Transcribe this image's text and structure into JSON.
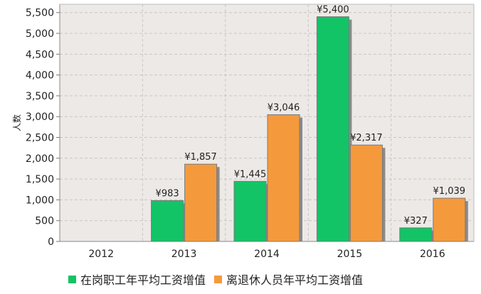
{
  "chart_data": {
    "type": "bar",
    "ylabel": "人数",
    "ylim": [
      0,
      5700
    ],
    "yticks": [
      0,
      500,
      1000,
      1500,
      2000,
      2500,
      3000,
      3500,
      4000,
      4500,
      5000,
      5500
    ],
    "ytick_labels": [
      "0",
      "500",
      "1,000",
      "1,500",
      "2,000",
      "2,500",
      "3,000",
      "3,500",
      "4,000",
      "4,500",
      "5,000",
      "5,500"
    ],
    "categories": [
      "2012",
      "2013",
      "2014",
      "2015",
      "2016"
    ],
    "series": [
      {
        "name": "在岗职工年平均工资增值",
        "color": "#12c466",
        "values": [
          null,
          983,
          1445,
          5400,
          327
        ],
        "labels": [
          "",
          "¥983",
          "¥1,445",
          "¥5,400",
          "¥327"
        ]
      },
      {
        "name": "离退休人员年平均工资增值",
        "color": "#f59a3c",
        "values": [
          null,
          1857,
          3046,
          2317,
          1039
        ],
        "labels": [
          "",
          "¥1,857",
          "¥3,046",
          "¥2,317",
          "¥1,039"
        ]
      }
    ],
    "grid": true,
    "legend_position": "bottom-left"
  }
}
